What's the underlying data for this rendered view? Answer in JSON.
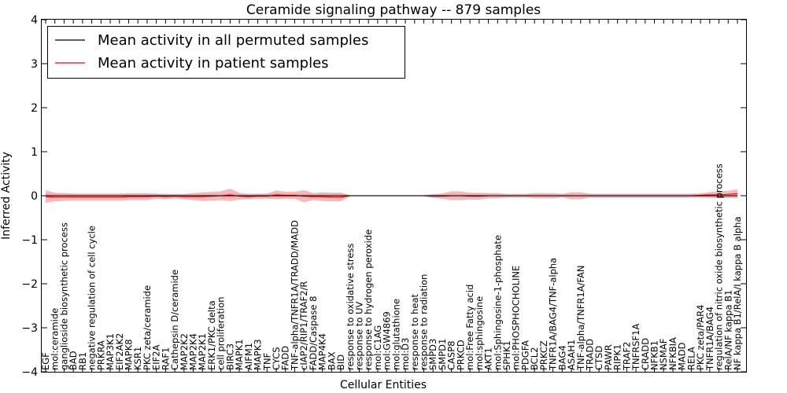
{
  "chart_data": {
    "type": "line",
    "title": "Ceramide signaling pathway -- 879 samples",
    "xlabel": "Cellular Entities",
    "ylabel": "Inferred Activity",
    "ylim": [
      -4,
      4
    ],
    "yticks": [
      "−4",
      "−3",
      "−2",
      "−1",
      "0",
      "1",
      "2",
      "3",
      "4"
    ],
    "grid": false,
    "legend_position": "top-left",
    "legend": [
      "Mean activity in all permuted samples",
      "Mean activity in patient samples"
    ],
    "colors": {
      "permuted": "#000000",
      "patient": "#ff0000",
      "patient_band": "#f08080",
      "permuted_band": "#bbbbcc"
    },
    "categories": [
      "EGF",
      "mol:ceramide",
      "ganglioside biosynthetic process",
      "BAD",
      "RB1",
      "negative regulation of cell cycle",
      "PRKRA",
      "MAP3K1",
      "EIF2AK2",
      "MAPK8",
      "KSR1",
      "PKC zeta/ceramide",
      "EIF2A",
      "RAF1",
      "Cathepsin D/ceramide",
      "MAP2K2",
      "MAP2K4",
      "MAP2K1",
      "ERK1/PKC delta",
      "cell proliferation",
      "BIRC3",
      "MAPK1",
      "AIFM1",
      "MAPK3",
      "TNF",
      "CYCS",
      "FADD",
      "TNF-alpha/TNFR1A/TRADD/MADD",
      "cIAP2/RIP1/TRAF2/R",
      "FADD/Caspase 8",
      "MAP4K4",
      "BAX",
      "BID",
      "response to oxidative stress",
      "response to UV",
      "response to hydrogen peroxide",
      "mol:C1AG",
      "mol:GW4869",
      "mol:glutathione",
      "mol:D3",
      "response to heat",
      "response to radiation",
      "SMPD3",
      "SMPD1",
      "CASP8",
      "PRKCD",
      "mol:Free Fatty acid",
      "mol:sphingosine",
      "AKT1",
      "mol:Sphingosine-1-phosphate",
      "SPHK1",
      "mol:PHOSPHOCHOLINE",
      "PDGFA",
      "BCL2",
      "PRKCZ",
      "TNFR1A/BAG4/TNF-alpha",
      "BAG4",
      "ASAH1",
      "TNF-alpha/TNFR1A/FAN",
      "TRADD",
      "CTSD",
      "PAWR",
      "RIPK1",
      "TRAF2",
      "TNFRSF1A",
      "CRADD",
      "NFKB1",
      "NSMAF",
      "NFKBIA",
      "MADD",
      "RELA",
      "PKC zeta/PAR4",
      "TNFR1A/BAG4",
      "regulation of nitric oxide biosynthetic process",
      "RelA/NF kappa B1",
      "NF kappa B1/RelA/I kappa B alpha"
    ],
    "series": [
      {
        "name": "Mean activity in all permuted samples",
        "values": [
          0,
          0,
          0,
          0,
          0,
          0,
          0,
          0,
          0,
          0,
          0,
          0,
          0,
          0,
          0,
          0,
          0,
          0,
          0,
          0,
          0,
          0,
          0,
          0,
          0,
          0,
          0,
          0,
          0,
          0,
          0,
          0,
          0,
          0,
          0,
          0,
          0,
          0,
          0,
          0,
          0,
          0,
          0,
          0,
          0,
          0,
          0,
          0,
          0,
          0,
          0,
          0,
          0,
          0,
          0,
          0,
          0,
          0,
          0,
          0,
          0,
          0,
          0,
          0,
          0,
          0,
          0,
          0,
          0,
          0,
          0,
          0,
          0,
          0,
          0,
          0
        ],
        "band": [
          0.05,
          0.04,
          0.04,
          0.04,
          0.04,
          0.04,
          0.04,
          0.04,
          0.04,
          0.04,
          0.04,
          0.04,
          0.04,
          0.04,
          0.04,
          0.04,
          0.04,
          0.04,
          0.04,
          0.04,
          0.06,
          0.04,
          0.04,
          0.04,
          0.04,
          0.06,
          0.04,
          0.04,
          0.05,
          0.04,
          0.04,
          0.04,
          0.06,
          0.02,
          0.02,
          0.02,
          0.02,
          0.02,
          0.02,
          0.02,
          0.02,
          0.02,
          0.04,
          0.04,
          0.04,
          0.04,
          0.04,
          0.04,
          0.04,
          0.04,
          0.04,
          0.04,
          0.04,
          0.04,
          0.04,
          0.04,
          0.04,
          0.04,
          0.04,
          0.05,
          0.05,
          0.05,
          0.05,
          0.05,
          0.05,
          0.05,
          0.05,
          0.05,
          0.05,
          0.05,
          0.05,
          0.05,
          0.05,
          0.05,
          0.05,
          0.05
        ]
      },
      {
        "name": "Mean activity in patient samples",
        "values": [
          -0.02,
          -0.03,
          -0.03,
          -0.03,
          -0.03,
          -0.03,
          -0.03,
          -0.03,
          -0.03,
          -0.02,
          -0.02,
          -0.02,
          -0.01,
          -0.02,
          -0.01,
          -0.02,
          -0.02,
          -0.02,
          -0.01,
          0.0,
          0.02,
          -0.01,
          -0.02,
          -0.01,
          -0.01,
          0.02,
          0.01,
          0.01,
          -0.01,
          -0.02,
          -0.02,
          -0.03,
          -0.03,
          0.0,
          0.0,
          0.0,
          0.0,
          0.0,
          0.0,
          0.0,
          0.0,
          0.0,
          -0.01,
          -0.01,
          0.0,
          0.0,
          -0.01,
          -0.01,
          0.0,
          0.0,
          0.0,
          0.0,
          0.0,
          0.0,
          0.0,
          0.0,
          0.0,
          0.0,
          0.0,
          0.0,
          0.0,
          0.0,
          0.0,
          0.0,
          0.0,
          0.0,
          0.0,
          0.0,
          0.0,
          0.0,
          0.0,
          0.01,
          0.02,
          0.02,
          0.03,
          0.05
        ],
        "band": [
          0.14,
          0.1,
          0.09,
          0.08,
          0.08,
          0.08,
          0.08,
          0.08,
          0.08,
          0.08,
          0.08,
          0.08,
          0.06,
          0.06,
          0.05,
          0.06,
          0.08,
          0.1,
          0.1,
          0.1,
          0.14,
          0.08,
          0.06,
          0.06,
          0.06,
          0.1,
          0.08,
          0.08,
          0.14,
          0.08,
          0.1,
          0.1,
          0.1,
          0.01,
          0.01,
          0.01,
          0.01,
          0.01,
          0.01,
          0.01,
          0.01,
          0.01,
          0.04,
          0.06,
          0.1,
          0.1,
          0.08,
          0.08,
          0.06,
          0.06,
          0.04,
          0.04,
          0.04,
          0.06,
          0.06,
          0.06,
          0.04,
          0.08,
          0.08,
          0.04,
          0.04,
          0.04,
          0.04,
          0.04,
          0.04,
          0.04,
          0.04,
          0.04,
          0.04,
          0.04,
          0.04,
          0.04,
          0.06,
          0.08,
          0.08,
          0.1
        ]
      }
    ]
  }
}
